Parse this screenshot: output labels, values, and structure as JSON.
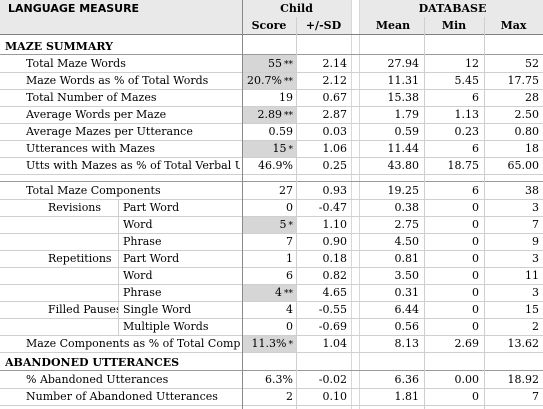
{
  "header": {
    "measure": "LANGUAGE MEASURE",
    "child": "Child",
    "database": "DATABASE",
    "score": "Score",
    "sd": "+/-SD",
    "mean": "Mean",
    "min": "Min",
    "max": "Max"
  },
  "sections": {
    "maze": "MAZE SUMMARY",
    "abandoned": "ABANDONED UTTERANCES"
  },
  "rows": [
    {
      "label": "Total Maze Words",
      "score": "55",
      "flag": "**",
      "sd": "2.14",
      "mean": "27.94",
      "min": "12",
      "max": "52"
    },
    {
      "label": "Maze Words as % of Total Words",
      "score": "20.7%",
      "flag": "**",
      "sd": "2.12",
      "mean": "11.31",
      "min": "5.45",
      "max": "17.75"
    },
    {
      "label": "Total Number of Mazes",
      "score": "19",
      "flag": "",
      "sd": "0.67",
      "mean": "15.38",
      "min": "6",
      "max": "28"
    },
    {
      "label": "Average Words per Maze",
      "score": "2.89",
      "flag": "**",
      "sd": "2.87",
      "mean": "1.79",
      "min": "1.13",
      "max": "2.50"
    },
    {
      "label": "Average Mazes per Utterance",
      "score": "0.59",
      "flag": "",
      "sd": "0.03",
      "mean": "0.59",
      "min": "0.23",
      "max": "0.80"
    },
    {
      "label": "Utterances with Mazes",
      "score": "15",
      "flag": "*",
      "sd": "1.06",
      "mean": "11.44",
      "min": "6",
      "max": "18"
    },
    {
      "label": "Utts with Mazes as % of Total Verbal Utts",
      "score": "46.9%",
      "flag": "",
      "sd": "0.25",
      "mean": "43.80",
      "min": "18.75",
      "max": "65.00"
    },
    {
      "label": "Total Maze Components",
      "score": "27",
      "flag": "",
      "sd": "0.93",
      "mean": "19.25",
      "min": "6",
      "max": "38"
    },
    {
      "group": "Revisions",
      "sub": "Part Word",
      "score": "0",
      "flag": "",
      "sd": "-0.47",
      "mean": "0.38",
      "min": "0",
      "max": "3"
    },
    {
      "sub": "Word",
      "score": "5",
      "flag": "*",
      "sd": "1.10",
      "mean": "2.75",
      "min": "0",
      "max": "7"
    },
    {
      "sub": "Phrase",
      "score": "7",
      "flag": "",
      "sd": "0.90",
      "mean": "4.50",
      "min": "0",
      "max": "9"
    },
    {
      "group": "Repetitions",
      "sub": "Part Word",
      "score": "1",
      "flag": "",
      "sd": "0.18",
      "mean": "0.81",
      "min": "0",
      "max": "3"
    },
    {
      "sub": "Word",
      "score": "6",
      "flag": "",
      "sd": "0.82",
      "mean": "3.50",
      "min": "0",
      "max": "11"
    },
    {
      "sub": "Phrase",
      "score": "4",
      "flag": "**",
      "sd": "4.65",
      "mean": "0.31",
      "min": "0",
      "max": "3"
    },
    {
      "group": "Filled Pauses",
      "sub": "Single Word",
      "score": "4",
      "flag": "",
      "sd": "-0.55",
      "mean": "6.44",
      "min": "0",
      "max": "15"
    },
    {
      "sub": "Multiple Words",
      "score": "0",
      "flag": "",
      "sd": "-0.69",
      "mean": "0.56",
      "min": "0",
      "max": "2"
    },
    {
      "label": "Maze Components as % of Total Componer",
      "score": "11.3%",
      "flag": "*",
      "sd": "1.04",
      "mean": "8.13",
      "min": "2.69",
      "max": "13.62"
    },
    {
      "label": "% Abandoned Utterances",
      "score": "6.3%",
      "flag": "",
      "sd": "-0.02",
      "mean": "6.36",
      "min": "0.00",
      "max": "18.92"
    },
    {
      "label": "Number of Abandoned Utterances",
      "score": "2",
      "flag": "",
      "sd": "0.10",
      "mean": "1.81",
      "min": "0",
      "max": "7"
    }
  ]
}
